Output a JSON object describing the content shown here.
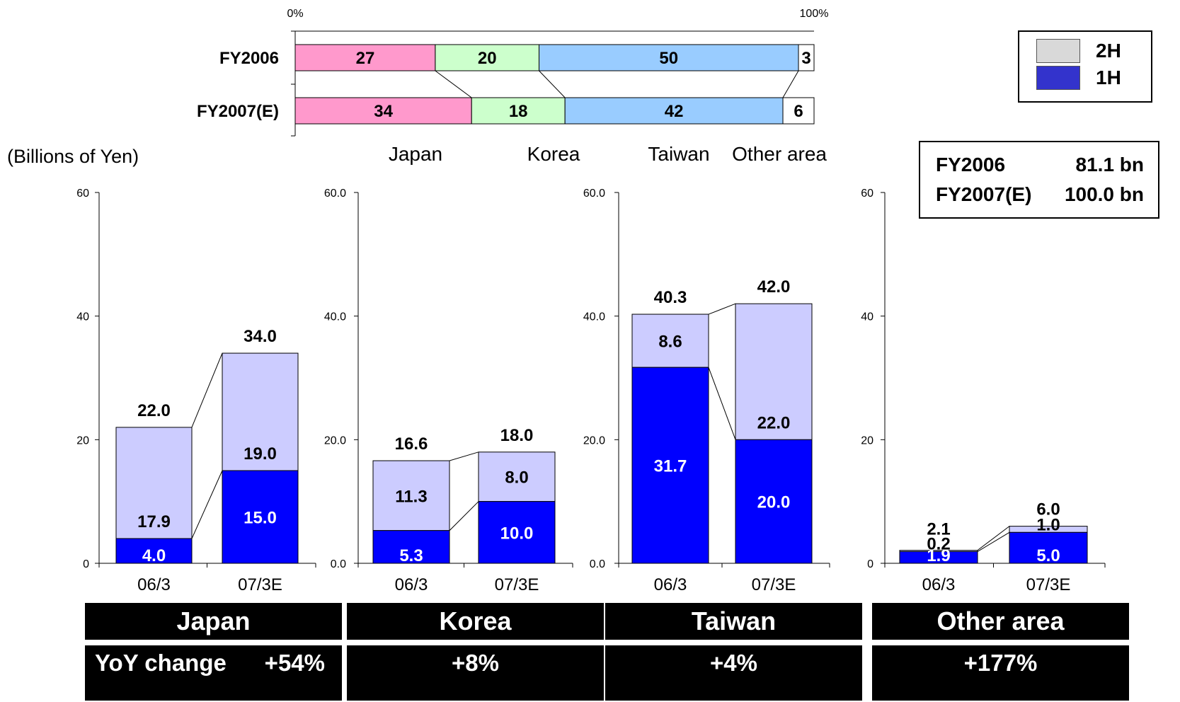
{
  "share_chart": {
    "scale_min_label": "0%",
    "scale_max_label": "100%",
    "rows": [
      {
        "label": "FY2006",
        "values": [
          27,
          20,
          50,
          3
        ]
      },
      {
        "label": "FY2007(E)",
        "values": [
          34,
          18,
          42,
          6
        ]
      }
    ],
    "segment_names": [
      "Japan",
      "Korea",
      "Taiwan",
      "Other area"
    ],
    "segment_colors": [
      "#ff99cc",
      "#ccffcc",
      "#99ccff",
      "#ffffff"
    ]
  },
  "legend": {
    "items": [
      {
        "label": "2H",
        "color": "#d9d9d9"
      },
      {
        "label": "1H",
        "color": "#3333cc"
      }
    ]
  },
  "totals": {
    "rows": [
      {
        "name": "FY2006",
        "value": "81.1 bn"
      },
      {
        "name": "FY2007(E)",
        "value": "100.0 bn"
      }
    ]
  },
  "unit_label": "(Billions of Yen)",
  "colors": {
    "h1": "#0000ff",
    "h2": "#ccccff"
  },
  "chart_data": [
    {
      "type": "bar",
      "region": "Japan",
      "categories": [
        "06/3",
        "07/3E"
      ],
      "series": [
        {
          "name": "1H",
          "values": [
            4.0,
            15.0
          ],
          "labels": [
            "4.0",
            "15.0"
          ]
        },
        {
          "name": "2H",
          "values": [
            18.0,
            19.0
          ],
          "labels": [
            "17.9",
            "19.0"
          ]
        }
      ],
      "totals": [
        22.0,
        34.0
      ],
      "total_labels": [
        "22.0",
        "34.0"
      ],
      "ylim": [
        0,
        60
      ],
      "yticks": [
        0,
        20,
        40,
        60
      ],
      "ytick_labels": [
        "0",
        "20",
        "40",
        "60"
      ]
    },
    {
      "type": "bar",
      "region": "Korea",
      "categories": [
        "06/3",
        "07/3E"
      ],
      "series": [
        {
          "name": "1H",
          "values": [
            5.3,
            10.0
          ],
          "labels": [
            "5.3",
            "10.0"
          ]
        },
        {
          "name": "2H",
          "values": [
            11.3,
            8.0
          ],
          "labels": [
            "11.3",
            "8.0"
          ]
        }
      ],
      "totals": [
        16.6,
        18.0
      ],
      "total_labels": [
        "16.6",
        "18.0"
      ],
      "ylim": [
        0,
        60
      ],
      "yticks": [
        0,
        20,
        40,
        60
      ],
      "ytick_labels": [
        "0.0",
        "20.0",
        "40.0",
        "60.0"
      ]
    },
    {
      "type": "bar",
      "region": "Taiwan",
      "categories": [
        "06/3",
        "07/3E"
      ],
      "series": [
        {
          "name": "1H",
          "values": [
            31.7,
            20.0
          ],
          "labels": [
            "31.7",
            "20.0"
          ]
        },
        {
          "name": "2H",
          "values": [
            8.6,
            22.0
          ],
          "labels": [
            "8.6",
            "22.0"
          ]
        }
      ],
      "totals": [
        40.3,
        42.0
      ],
      "total_labels": [
        "40.3",
        "42.0"
      ],
      "ylim": [
        0,
        60
      ],
      "yticks": [
        0,
        20,
        40,
        60
      ],
      "ytick_labels": [
        "0.0",
        "20.0",
        "40.0",
        "60.0"
      ]
    },
    {
      "type": "bar",
      "region": "Other area",
      "categories": [
        "06/3",
        "07/3E"
      ],
      "series": [
        {
          "name": "1H",
          "values": [
            1.9,
            5.0
          ],
          "labels": [
            "1.9",
            "5.0"
          ]
        },
        {
          "name": "2H",
          "values": [
            0.2,
            1.0
          ],
          "labels": [
            "0.2",
            "1.0"
          ]
        }
      ],
      "totals": [
        2.1,
        6.0
      ],
      "total_labels": [
        "2.1",
        "6.0"
      ],
      "ylim": [
        0,
        60
      ],
      "yticks": [
        0,
        20,
        40,
        60
      ],
      "ytick_labels": [
        "0",
        "20",
        "40",
        "60"
      ]
    }
  ],
  "bottom_table": {
    "columns": [
      {
        "name": "Japan",
        "yoy": "+54%"
      },
      {
        "name": "Korea",
        "yoy": "+8%"
      },
      {
        "name": "Taiwan",
        "yoy": "+4%"
      },
      {
        "name": "Other area",
        "yoy": "+177%"
      }
    ],
    "yoy_prefix": "YoY change"
  }
}
